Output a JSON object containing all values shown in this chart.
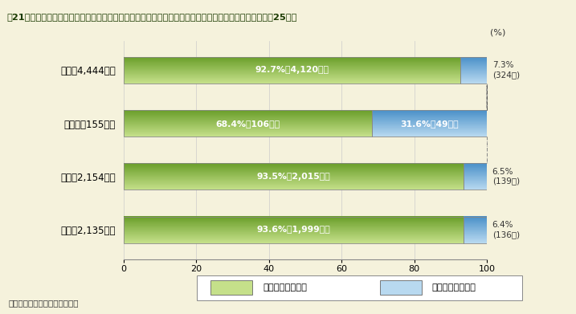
{
  "title": "第21図　配偶者間（内縁を含む）における犯罪（殺人，傷害，暴行）の被害者（検挙件数の割合）（平成25年）",
  "categories": [
    "総数（4,444件）",
    "殺人　（155件）",
    "傷害（2,154件）",
    "暴行（2,135件）"
  ],
  "female_pct": [
    92.7,
    68.4,
    93.5,
    93.6
  ],
  "male_pct": [
    7.3,
    31.6,
    6.5,
    6.4
  ],
  "female_label": [
    "92.7%（4,120件）",
    "68.4%（106件）",
    "93.5%（2,015件）",
    "93.6%（1,999件）"
  ],
  "male_label_inside": [
    "",
    "31.6%（49件）",
    "",
    ""
  ],
  "male_label_outside": [
    "7.3%\n(324件)",
    "",
    "6.5%\n(139件)",
    "6.4%\n(136件)"
  ],
  "green_light": "#c5e08a",
  "green_dark": "#6a9e2a",
  "blue_light": "#b8d9f0",
  "blue_dark": "#4a90c8",
  "bg_color": "#f5f2dc",
  "title_bg": "#d4dd6a",
  "title_fg": "#1a3a00",
  "bar_height": 0.5,
  "legend_female": "女性配偶者の割合",
  "legend_male": "男性配偶者の割合",
  "note": "（備考）警察庁資料より作成。",
  "xticks": [
    0,
    20,
    40,
    60,
    80,
    100
  ]
}
